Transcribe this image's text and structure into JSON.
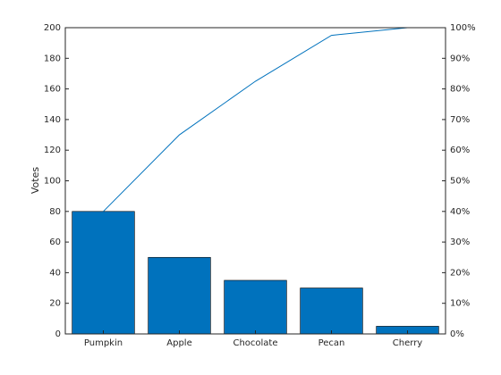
{
  "chart_data": {
    "type": "pareto",
    "ylabel": "Votes",
    "categories": [
      "Pumpkin",
      "Apple",
      "Chocolate",
      "Pecan",
      "Cherry"
    ],
    "series": [
      {
        "values": [
          80,
          50,
          35,
          30,
          5
        ],
        "color": "#0072bd"
      },
      {
        "values": [
          40,
          65,
          82.5,
          97.5,
          100
        ],
        "color": "#0072bd",
        "axis": "y2"
      }
    ],
    "ylim": [
      0,
      200
    ],
    "yticks": [
      0,
      20,
      40,
      60,
      80,
      100,
      120,
      140,
      160,
      180,
      200
    ],
    "y2lim": [
      0,
      100
    ],
    "y2ticks": [
      {
        "value": 0,
        "label": "0%"
      },
      {
        "value": 10,
        "label": "10%"
      },
      {
        "value": 20,
        "label": "20%"
      },
      {
        "value": 30,
        "label": "30%"
      },
      {
        "value": 40,
        "label": "40%"
      },
      {
        "value": 50,
        "label": "50%"
      },
      {
        "value": 60,
        "label": "60%"
      },
      {
        "value": 70,
        "label": "70%"
      },
      {
        "value": 80,
        "label": "80%"
      },
      {
        "value": 90,
        "label": "90%"
      },
      {
        "value": 100,
        "label": "100%"
      }
    ],
    "grid": false
  }
}
